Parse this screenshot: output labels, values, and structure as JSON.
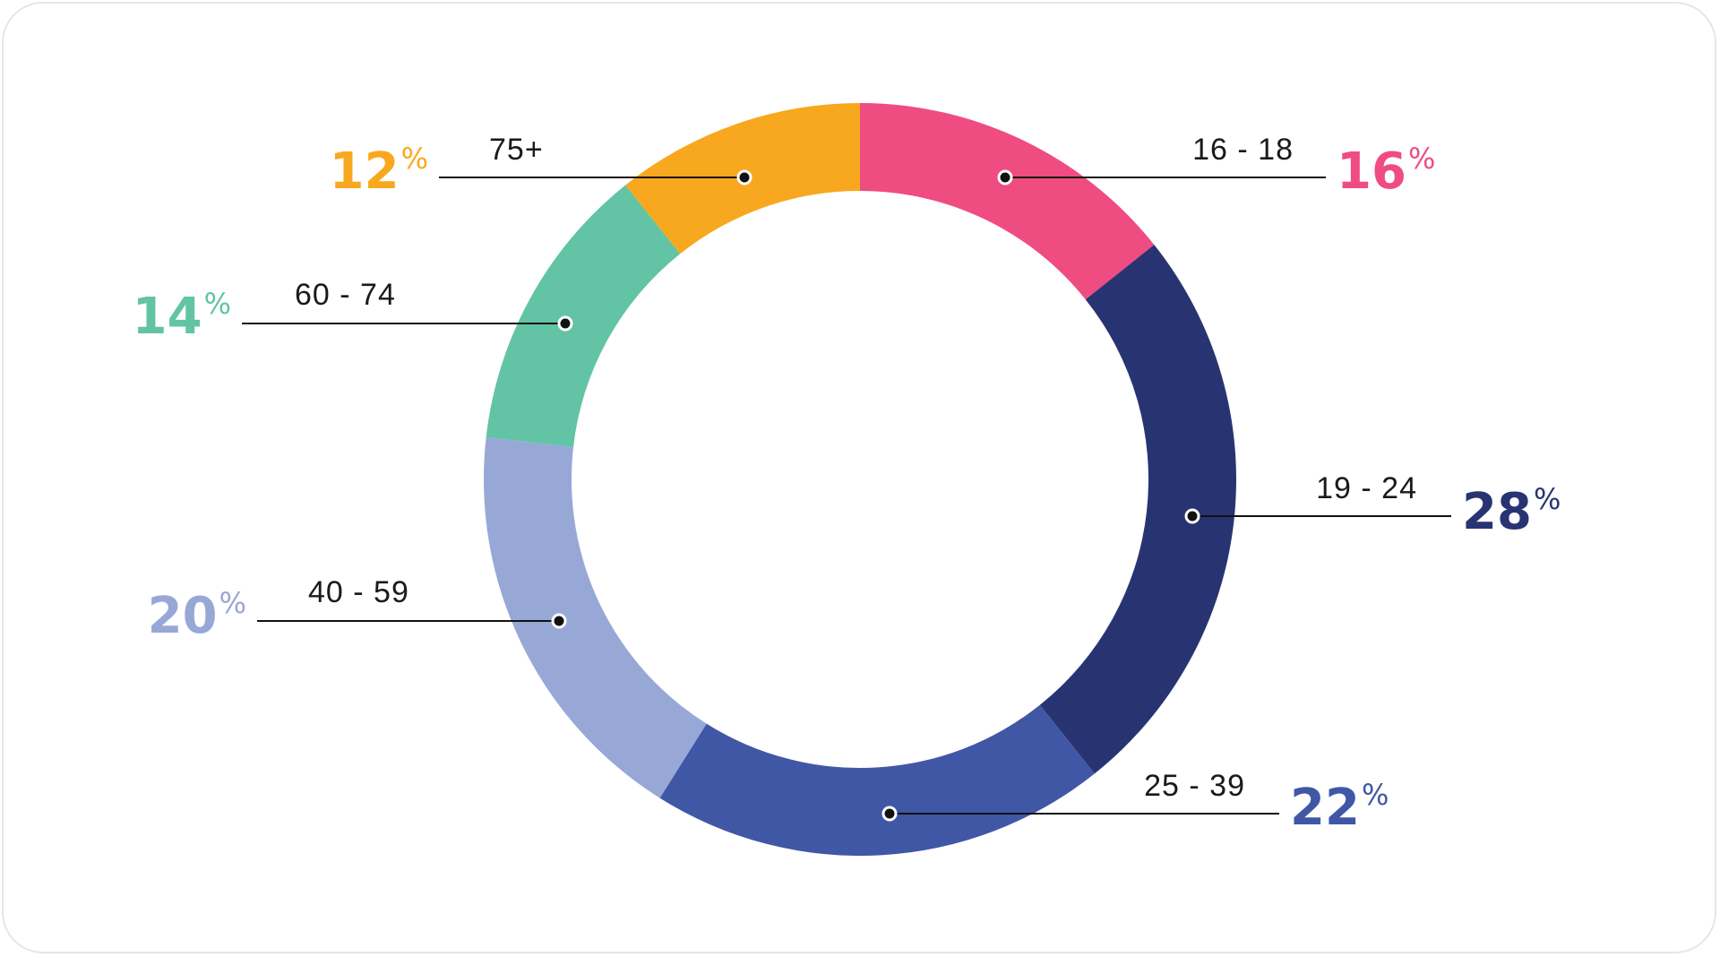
{
  "chart_data": {
    "type": "pie",
    "style": "donut",
    "slices": [
      {
        "label": "16 - 18",
        "value": 16,
        "value_text": "16",
        "color": "#ef4c82"
      },
      {
        "label": "19 - 24",
        "value": 28,
        "value_text": "28",
        "color": "#283472"
      },
      {
        "label": "25 - 39",
        "value": 22,
        "value_text": "22",
        "color": "#4057a5"
      },
      {
        "label": "40 - 59",
        "value": 20,
        "value_text": "20",
        "color": "#98a8d6"
      },
      {
        "label": "60 - 74",
        "value": 14,
        "value_text": "14",
        "color": "#62c4a4"
      },
      {
        "label": "75+",
        "value": 12,
        "value_text": "12",
        "color": "#f8a81e"
      }
    ],
    "percent_sign": "%"
  }
}
